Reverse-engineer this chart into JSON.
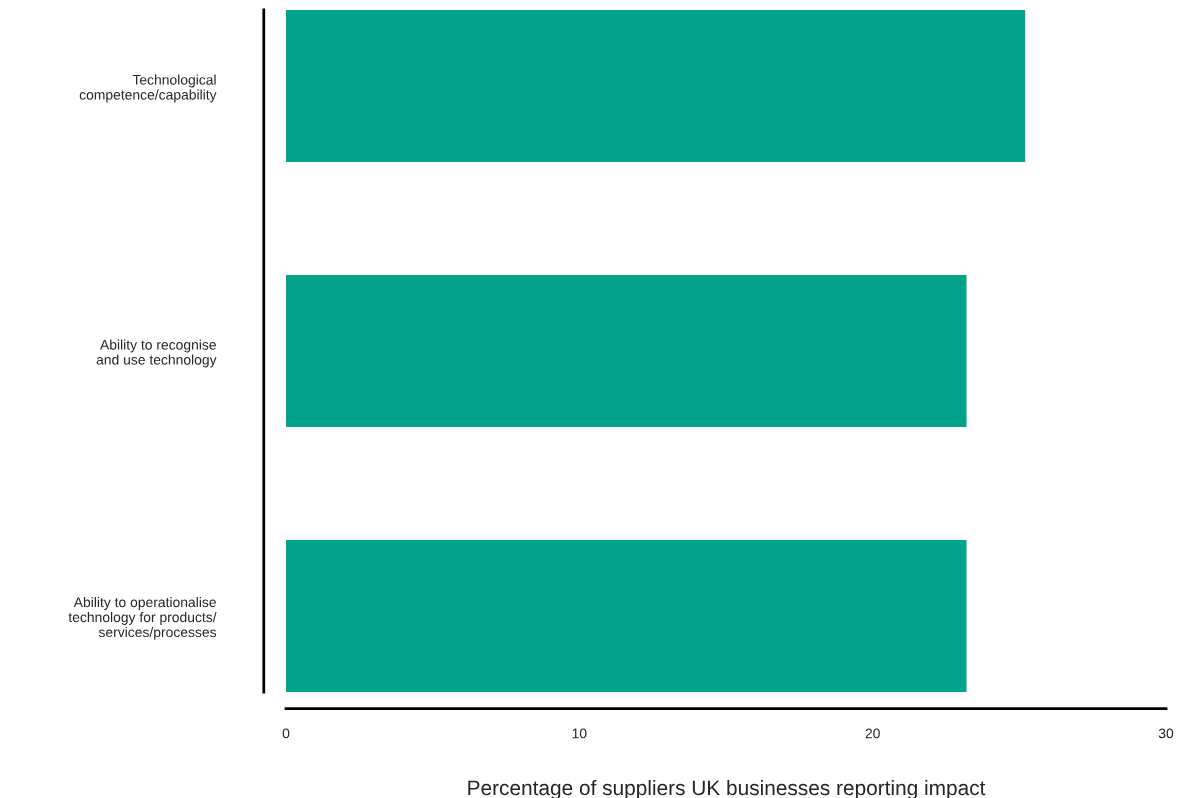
{
  "chart_data": {
    "type": "bar",
    "orientation": "horizontal",
    "categories": [
      "Technological\ncompetence/capability",
      "Ability to recognise\nand use technology",
      "Ability to operationalise\ntechnology for products/\nservices/processes"
    ],
    "values": [
      25.2,
      23.2,
      23.2
    ],
    "color": "#02a38a",
    "xlim": [
      0,
      30
    ],
    "xticks": [
      0,
      10,
      20,
      30
    ],
    "xlabel": "Percentage of suppliers UK businesses reporting impact",
    "grid": false,
    "legend": false
  }
}
